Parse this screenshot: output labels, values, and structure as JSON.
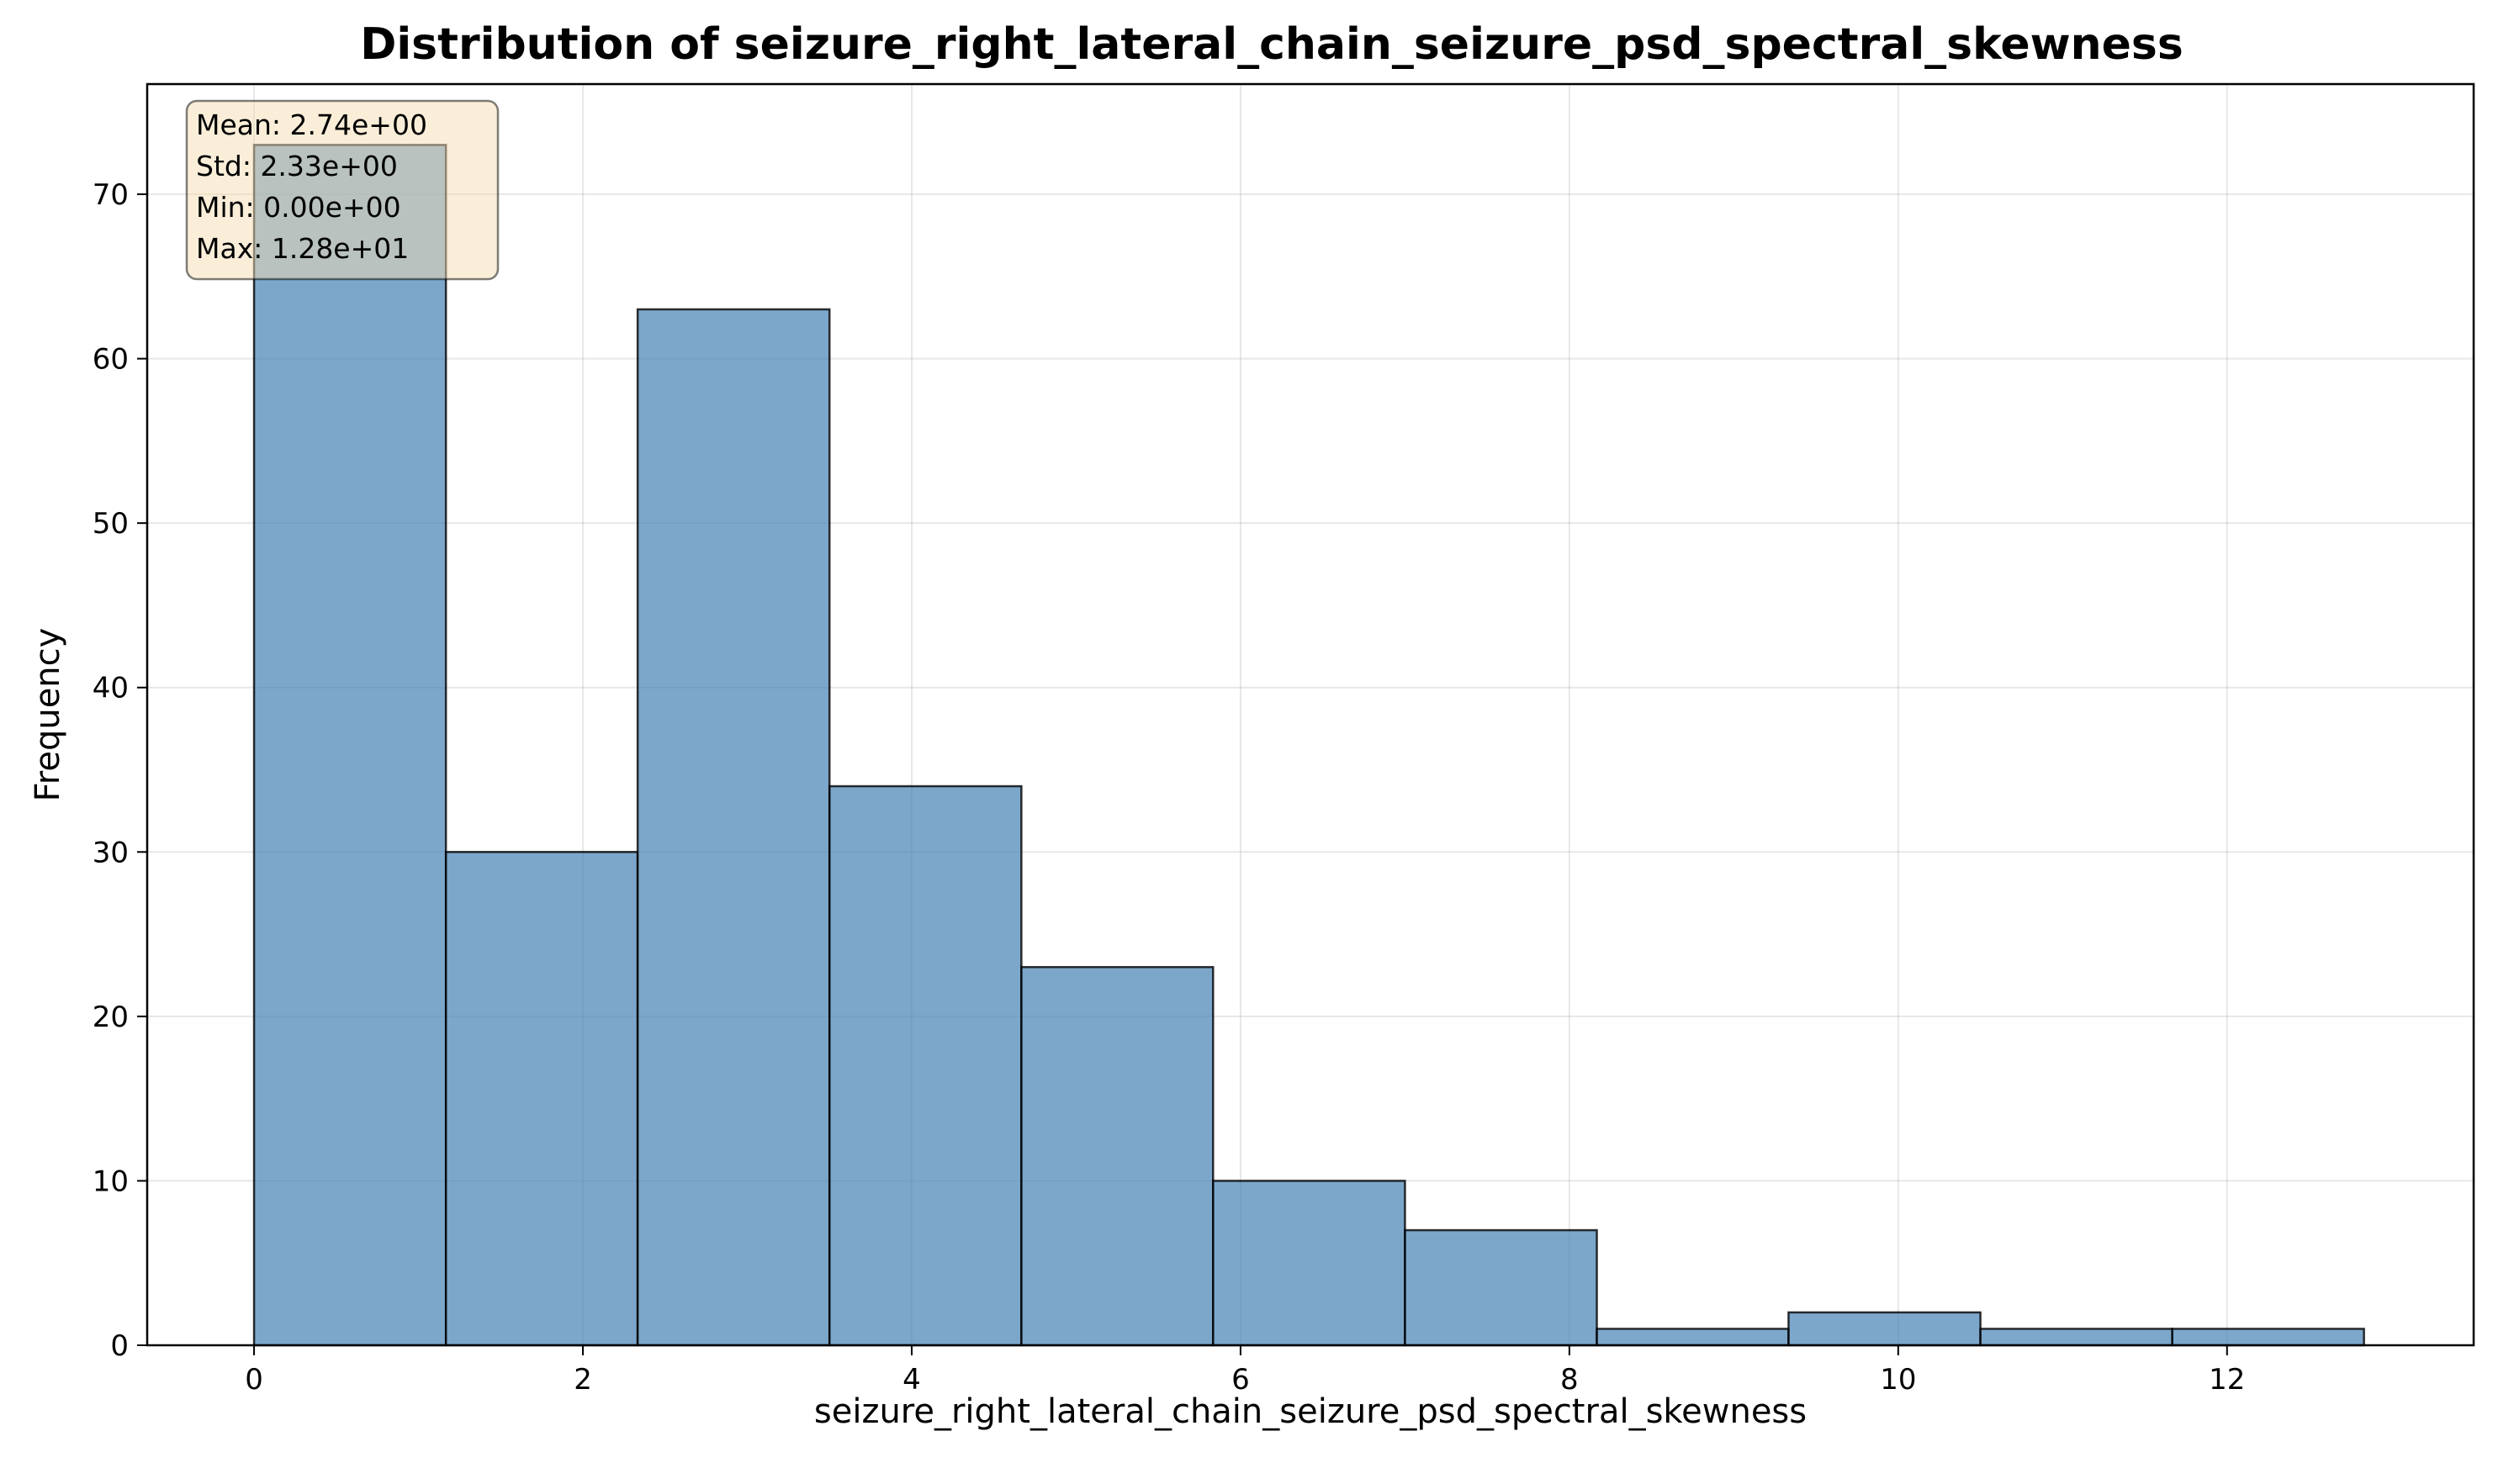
{
  "chart_data": {
    "type": "bar",
    "title": "Distribution of seizure_right_lateral_chain_seizure_psd_spectral_skewness",
    "xlabel": "seizure_right_lateral_chain_seizure_psd_spectral_skewness",
    "ylabel": "Frequency",
    "bin_edges": [
      0.0,
      1.167,
      2.333,
      3.5,
      4.667,
      5.833,
      7.0,
      8.167,
      9.333,
      10.5,
      11.667,
      12.833
    ],
    "values": [
      73,
      30,
      63,
      34,
      23,
      10,
      7,
      1,
      2,
      1,
      1
    ],
    "xlim": [
      -0.65,
      13.5
    ],
    "ylim": [
      0,
      76.7
    ],
    "xticks": [
      0,
      2,
      4,
      6,
      8,
      10,
      12
    ],
    "yticks": [
      0,
      10,
      20,
      30,
      40,
      50,
      60,
      70
    ],
    "grid": true,
    "bar_color": "#4682b4",
    "bar_opacity": 0.7,
    "edge_color": "#000000",
    "stats_box": {
      "lines": [
        "Mean: 2.74e+00",
        "Std: 2.33e+00",
        "Min: 0.00e+00",
        "Max: 1.28e+01"
      ],
      "background": "#f5deb3",
      "placement": "top-left"
    }
  }
}
